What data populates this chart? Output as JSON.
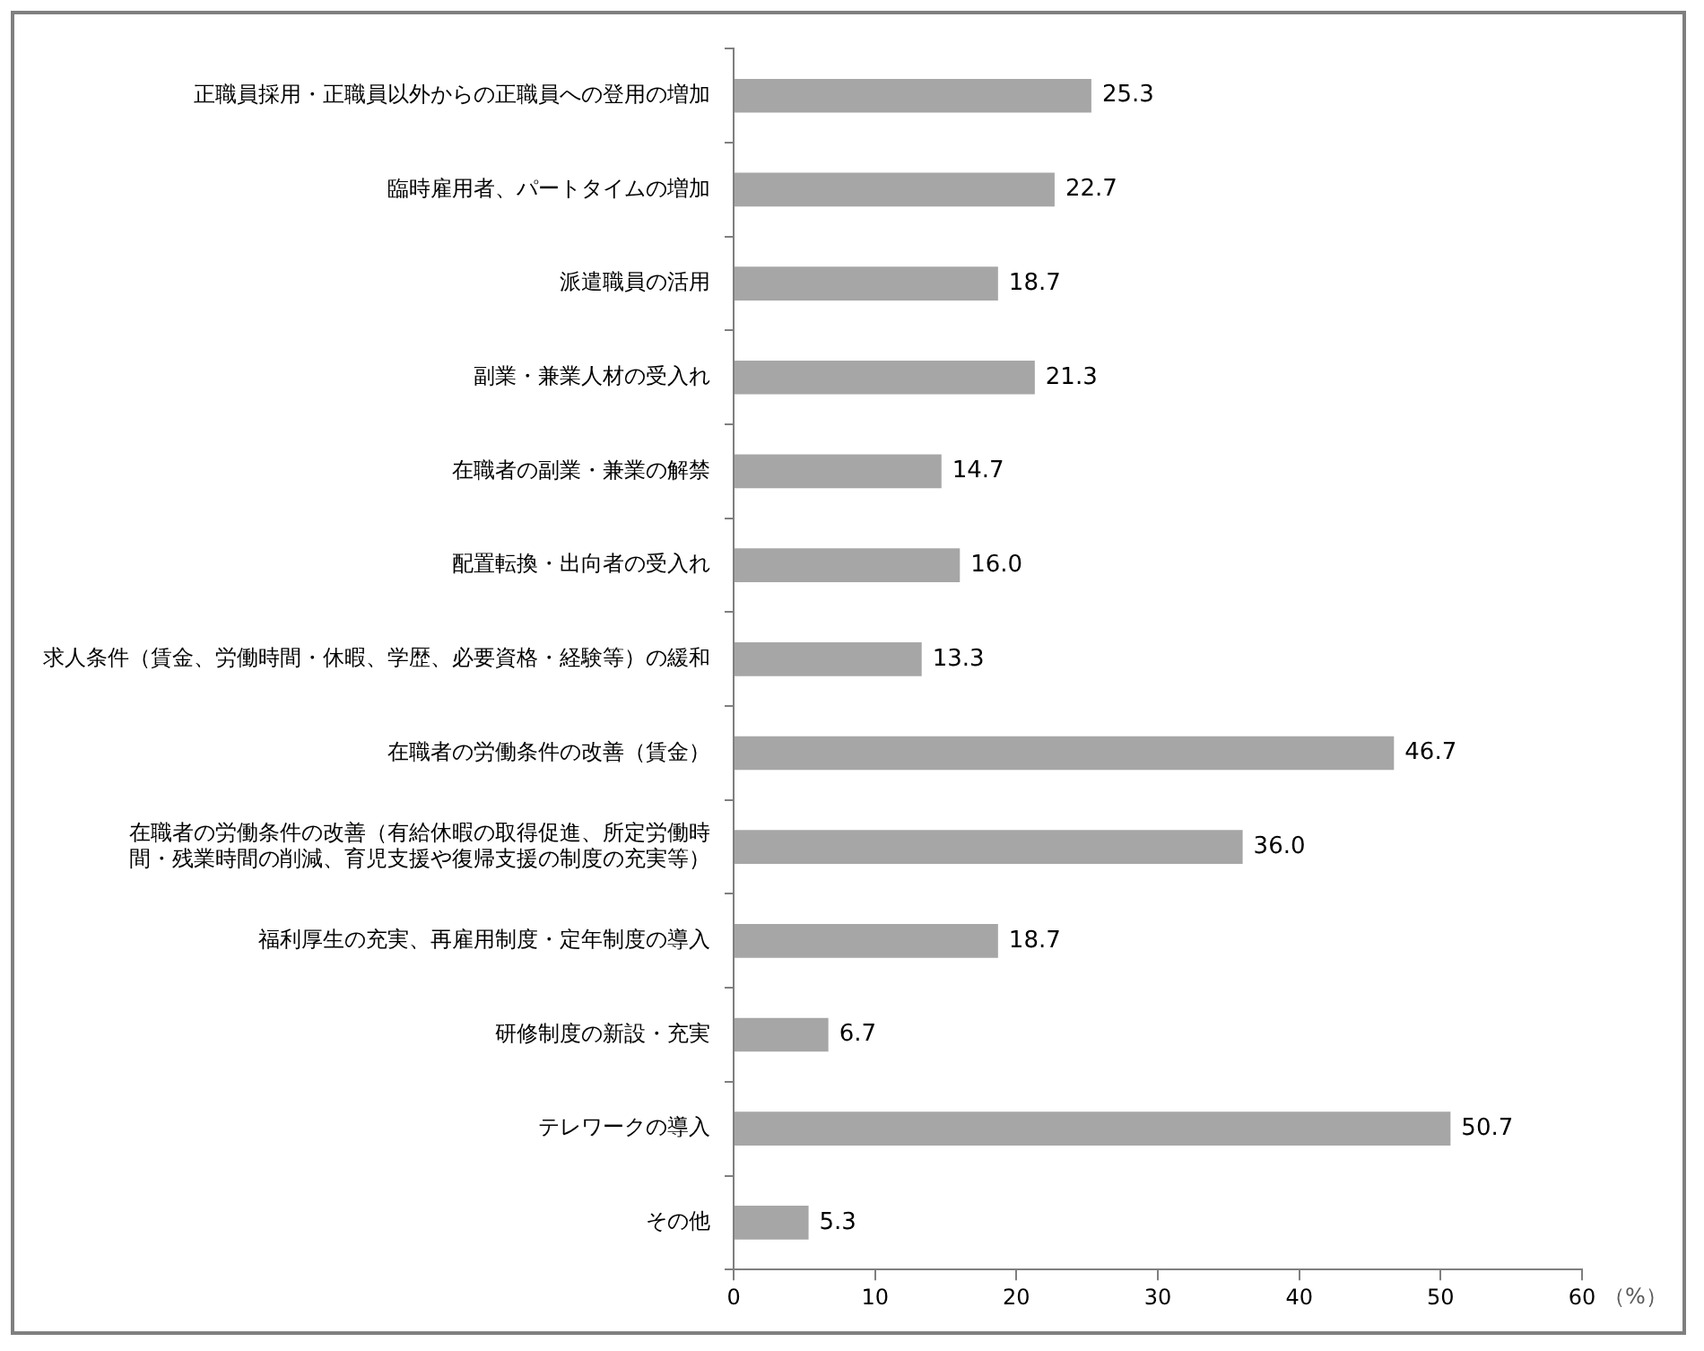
{
  "chart_data": {
    "type": "bar",
    "orientation": "horizontal",
    "xlabel": "（%）",
    "categories": [
      "正職員採用・正職員以外からの正職員への登用の増加",
      "臨時雇用者、パートタイムの増加",
      "派遣職員の活用",
      "副業・兼業人材の受入れ",
      "在職者の副業・兼業の解禁",
      "配置転換・出向者の受入れ",
      "求人条件（賃金、労働時間・休暇、学歴、必要資格・経験等）の緩和",
      "在職者の労働条件の改善（賃金）",
      "在職者の労働条件の改善（有給休暇の取得促進、所定労働時間・残業時間の削減、育児支援や復帰支援の制度の充実等）",
      "福利厚生の充実、再雇用制度・定年制度の導入",
      "研修制度の新設・充実",
      "テレワークの導入",
      "その他"
    ],
    "values": [
      25.3,
      22.7,
      18.7,
      21.3,
      14.7,
      16.0,
      13.3,
      46.7,
      36.0,
      18.7,
      6.7,
      50.7,
      5.3
    ],
    "value_labels": [
      "25.3",
      "22.7",
      "18.7",
      "21.3",
      "14.7",
      "16.0",
      "13.3",
      "46.7",
      "36.0",
      "18.7",
      "6.7",
      "50.7",
      "5.3"
    ],
    "color": "#a6a6a6",
    "xlim": [
      0,
      60
    ],
    "xticks": [
      0,
      10,
      20,
      30,
      40,
      50,
      60
    ],
    "grid": false,
    "legend": false
  }
}
